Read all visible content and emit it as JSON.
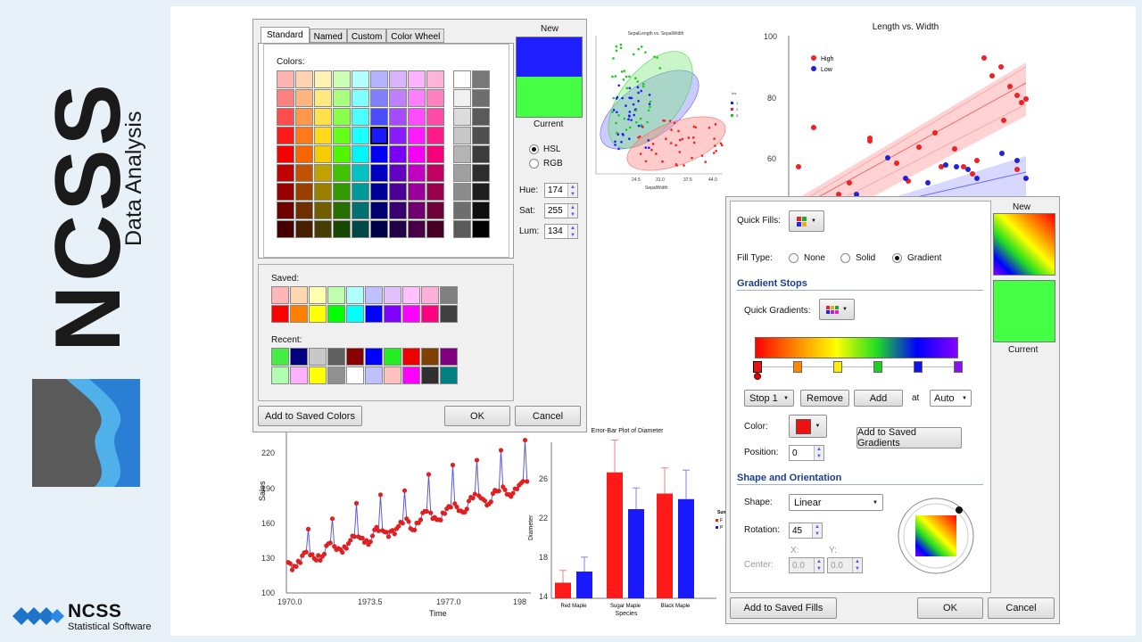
{
  "brand": {
    "name": "NCSS",
    "subtitle": "Data Analysis",
    "footer_name": "NCSS",
    "footer_tagline": "Statistical Software"
  },
  "colors": {
    "accent_navy": "#1c3f8c",
    "brand_blue": "#2a7fd4"
  },
  "color_dialog": {
    "tabs": [
      "Standard",
      "Named",
      "Custom",
      "Color Wheel"
    ],
    "colors_label": "Colors:",
    "saved_label": "Saved:",
    "recent_label": "Recent:",
    "new_label": "New",
    "current_label": "Current",
    "new_color": "#2020ff",
    "current_color": "#44ff44",
    "mode_hsl": "HSL",
    "mode_rgb": "RGB",
    "hue_label": "Hue:",
    "hue": "174",
    "sat_label": "Sat:",
    "sat": "255",
    "lum_label": "Lum:",
    "lum": "134",
    "add_saved": "Add to Saved Colors",
    "ok": "OK",
    "cancel": "Cancel"
  },
  "fill_dialog": {
    "quick_fills": "Quick Fills:",
    "fill_type": "Fill Type:",
    "fill_none": "None",
    "fill_solid": "Solid",
    "fill_gradient": "Gradient",
    "gradient_stops": "Gradient Stops",
    "quick_gradients": "Quick Gradients:",
    "stop_select": "Stop 1",
    "remove": "Remove",
    "add": "Add",
    "at": "at",
    "at_value": "Auto",
    "color_label": "Color:",
    "position_label": "Position:",
    "position": "0",
    "add_saved_gradients": "Add to Saved Gradients",
    "shape_orientation": "Shape and Orientation",
    "shape_label": "Shape:",
    "shape": "Linear",
    "rotation_label": "Rotation:",
    "rotation": "45",
    "center_label": "Center:",
    "x_label": "X:",
    "y_label": "Y:",
    "x": "0.0",
    "y": "0.0",
    "new_label": "New",
    "current_label": "Current",
    "add_saved_fills": "Add to Saved Fills",
    "ok": "OK",
    "cancel": "Cancel"
  },
  "charts": {
    "scatter_title": "SepalLength vs. SepalWidth",
    "scatter_xlabel": "SepalWidth",
    "scatter_xticks": [
      "24.5",
      "31.0",
      "37.5",
      "44.0"
    ],
    "scatter_legend_title": "Iris",
    "scatter_legend": [
      "1",
      "2",
      "3"
    ],
    "lvw_title": "Length vs. Width",
    "lvw_yticks": [
      "100",
      "80",
      "60"
    ],
    "lvw_legend": [
      "High",
      "Low"
    ],
    "ts_ylabel": "Sales",
    "ts_xlabel": "Time",
    "ts_yticks": [
      "220",
      "190",
      "160",
      "130",
      "100"
    ],
    "ts_xticks": [
      "1970.0",
      "1973.5",
      "1977.0",
      "198"
    ],
    "eb_title": "Error-Bar Plot of Diameter",
    "eb_ylabel": "Diameter",
    "eb_xlabel": "Species",
    "eb_yticks": [
      "26",
      "22",
      "18",
      "14"
    ],
    "eb_legend_title": "Sun",
    "eb_legend": [
      "F",
      "P"
    ]
  },
  "chart_data": {
    "type": "bar",
    "title": "Error-Bar Plot of Diameter",
    "xlabel": "Species",
    "ylabel": "Diameter",
    "categories": [
      "Red Maple",
      "Sugar Maple",
      "Black Maple"
    ],
    "ylim": [
      14,
      28
    ],
    "series": [
      {
        "values": [
          15.4,
          25.3,
          23.4
        ],
        "errors": [
          1.1,
          2.9,
          2.3
        ]
      },
      {
        "values": [
          16.4,
          22.0,
          22.9
        ],
        "errors": [
          1.3,
          1.9,
          2.6
        ]
      }
    ],
    "colors": [
      "#ff1a1a",
      "#1a1aff"
    ]
  }
}
